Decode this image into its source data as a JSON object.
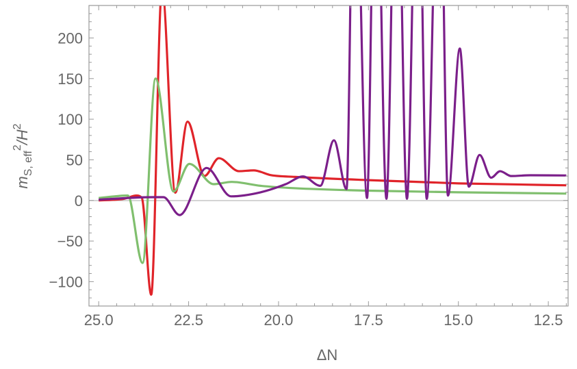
{
  "chart_data": {
    "type": "line",
    "title": "",
    "xlabel": "ΔN",
    "ylabel": {
      "base": "m",
      "subscript": "S, eff",
      "sup1": "2",
      "mid": "/H",
      "sup2": "2"
    },
    "xlim": [
      25.27,
      11.95
    ],
    "ylim": [
      -130,
      240
    ],
    "x_reversed": true,
    "grid": false,
    "x_ticks": [
      25.0,
      22.5,
      20.0,
      17.5,
      15.0,
      12.5
    ],
    "x_tick_labels": [
      "25.0",
      "22.5",
      "20.0",
      "17.5",
      "15.0",
      "12.5"
    ],
    "y_ticks": [
      -100,
      -50,
      0,
      50,
      100,
      150,
      200
    ],
    "y_tick_labels": [
      "−100",
      "−50",
      "0",
      "50",
      "100",
      "150",
      "200"
    ],
    "zero_line": true,
    "series": [
      {
        "color": "#e0242a",
        "points": [
          [
            25,
            0
          ],
          [
            24.3,
            2
          ],
          [
            23.95,
            6
          ],
          [
            23.8,
            3
          ],
          [
            23.54,
            -116
          ],
          [
            23.24,
            262
          ],
          [
            22.87,
            9.5
          ],
          [
            22.53,
            97
          ],
          [
            22.06,
            30
          ],
          [
            21.66,
            52
          ],
          [
            21.1,
            36
          ],
          [
            20.69,
            37
          ],
          [
            20.2,
            31
          ],
          [
            19.54,
            29
          ],
          [
            17.5,
            25
          ],
          [
            15,
            21
          ],
          [
            12,
            18.6
          ]
        ]
      },
      {
        "color": "#80bf6e",
        "points": [
          [
            25,
            3
          ],
          [
            24.19,
            6
          ],
          [
            23.78,
            -77
          ],
          [
            23.42,
            150
          ],
          [
            22.92,
            11
          ],
          [
            22.48,
            45
          ],
          [
            21.8,
            20
          ],
          [
            21.3,
            22.8
          ],
          [
            20.5,
            18
          ],
          [
            19.54,
            15
          ],
          [
            17.5,
            12
          ],
          [
            15,
            10
          ],
          [
            12,
            8.4
          ]
        ]
      },
      {
        "color": "#7b1f8a",
        "points": [
          [
            25,
            1
          ],
          [
            23.5,
            4
          ],
          [
            23.2,
            4
          ],
          [
            22.75,
            -18
          ],
          [
            22.0,
            40
          ],
          [
            21.32,
            5
          ],
          [
            20.5,
            10
          ],
          [
            19.8,
            20
          ],
          [
            19.32,
            29.5
          ],
          [
            18.84,
            18
          ],
          [
            18.46,
            74
          ],
          [
            18.11,
            14
          ],
          [
            17.89,
            500
          ],
          [
            17.54,
            3
          ],
          [
            17.3,
            500
          ],
          [
            17.0,
            2
          ],
          [
            16.72,
            500
          ],
          [
            16.43,
            2
          ],
          [
            16.13,
            500
          ],
          [
            15.88,
            2
          ],
          [
            15.53,
            500
          ],
          [
            15.29,
            6
          ],
          [
            14.96,
            187
          ],
          [
            14.71,
            17
          ],
          [
            14.41,
            56
          ],
          [
            14.09,
            28
          ],
          [
            13.84,
            36
          ],
          [
            13.53,
            30
          ],
          [
            13.0,
            31
          ],
          [
            12,
            30.7
          ]
        ]
      }
    ]
  }
}
